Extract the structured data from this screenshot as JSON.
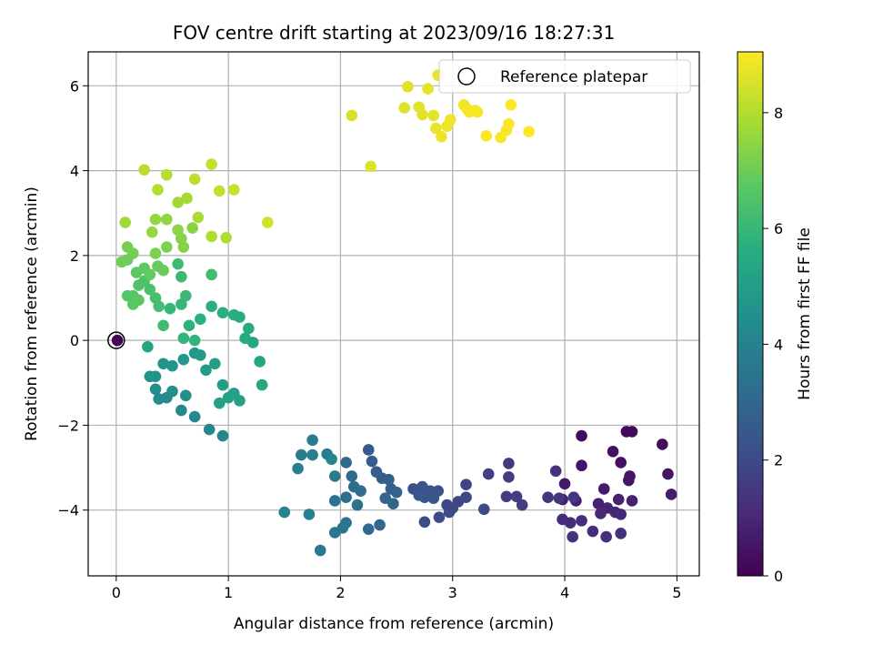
{
  "chart_data": {
    "type": "scatter",
    "title": "FOV centre drift starting at 2023/09/16 18:27:31",
    "xlabel": "Angular distance from reference (arcmin)",
    "ylabel": "Rotation from reference (arcmin)",
    "colorbar_label": "Hours from first FF file",
    "xlim": [
      -0.25,
      5.2
    ],
    "ylim": [
      -5.55,
      6.8
    ],
    "xticks": [
      0,
      1,
      2,
      3,
      4,
      5
    ],
    "yticks": [
      -4,
      -2,
      0,
      2,
      4,
      6
    ],
    "colorbar_ticks": [
      0,
      2,
      4,
      6,
      8
    ],
    "colorbar_range": [
      0,
      9.05
    ],
    "colormap": "viridis",
    "grid": true,
    "legend": {
      "label": "Reference platepar",
      "placement": "top-right"
    },
    "reference_point": {
      "x": 0,
      "y": 0
    },
    "points": [
      {
        "x": 0.01,
        "y": 0.0,
        "t": 0.0
      },
      {
        "x": 4.55,
        "y": -2.15,
        "t": 0.2
      },
      {
        "x": 4.6,
        "y": -2.15,
        "t": 0.2
      },
      {
        "x": 4.15,
        "y": -2.25,
        "t": 0.25
      },
      {
        "x": 4.87,
        "y": -2.45,
        "t": 0.3
      },
      {
        "x": 4.43,
        "y": -2.62,
        "t": 0.35
      },
      {
        "x": 4.5,
        "y": -2.88,
        "t": 0.4
      },
      {
        "x": 4.15,
        "y": -2.95,
        "t": 0.45
      },
      {
        "x": 4.58,
        "y": -3.2,
        "t": 0.5
      },
      {
        "x": 4.92,
        "y": -3.15,
        "t": 0.5
      },
      {
        "x": 4.57,
        "y": -3.3,
        "t": 0.55
      },
      {
        "x": 4.0,
        "y": -3.38,
        "t": 0.6
      },
      {
        "x": 4.35,
        "y": -3.5,
        "t": 0.65
      },
      {
        "x": 4.95,
        "y": -3.63,
        "t": 0.7
      },
      {
        "x": 3.98,
        "y": -3.75,
        "t": 0.75
      },
      {
        "x": 4.1,
        "y": -3.78,
        "t": 0.8
      },
      {
        "x": 4.3,
        "y": -3.85,
        "t": 0.8
      },
      {
        "x": 4.48,
        "y": -3.75,
        "t": 0.85
      },
      {
        "x": 4.6,
        "y": -3.78,
        "t": 0.85
      },
      {
        "x": 4.38,
        "y": -3.95,
        "t": 0.9
      },
      {
        "x": 4.45,
        "y": -4.05,
        "t": 0.95
      },
      {
        "x": 4.32,
        "y": -4.08,
        "t": 1.0
      },
      {
        "x": 4.5,
        "y": -4.1,
        "t": 1.0
      },
      {
        "x": 3.98,
        "y": -4.22,
        "t": 1.05
      },
      {
        "x": 4.05,
        "y": -4.3,
        "t": 1.1
      },
      {
        "x": 4.15,
        "y": -4.25,
        "t": 1.1
      },
      {
        "x": 4.25,
        "y": -4.5,
        "t": 1.15
      },
      {
        "x": 4.5,
        "y": -4.55,
        "t": 1.2
      },
      {
        "x": 4.37,
        "y": -4.63,
        "t": 1.2
      },
      {
        "x": 4.07,
        "y": -4.63,
        "t": 1.25
      },
      {
        "x": 3.92,
        "y": -3.08,
        "t": 1.3
      },
      {
        "x": 3.85,
        "y": -3.7,
        "t": 1.35
      },
      {
        "x": 3.95,
        "y": -3.72,
        "t": 1.4
      },
      {
        "x": 4.08,
        "y": -3.7,
        "t": 1.45
      },
      {
        "x": 3.5,
        "y": -2.9,
        "t": 1.5
      },
      {
        "x": 3.5,
        "y": -3.22,
        "t": 1.55
      },
      {
        "x": 3.48,
        "y": -3.68,
        "t": 1.6
      },
      {
        "x": 3.57,
        "y": -3.68,
        "t": 1.65
      },
      {
        "x": 3.62,
        "y": -3.88,
        "t": 1.7
      },
      {
        "x": 3.32,
        "y": -3.15,
        "t": 1.75
      },
      {
        "x": 3.12,
        "y": -3.4,
        "t": 1.8
      },
      {
        "x": 3.12,
        "y": -3.7,
        "t": 1.85
      },
      {
        "x": 3.05,
        "y": -3.8,
        "t": 1.9
      },
      {
        "x": 2.95,
        "y": -3.88,
        "t": 1.95
      },
      {
        "x": 3.0,
        "y": -3.95,
        "t": 2.0
      },
      {
        "x": 3.28,
        "y": -3.98,
        "t": 2.0
      },
      {
        "x": 2.97,
        "y": -4.05,
        "t": 2.05
      },
      {
        "x": 2.88,
        "y": -4.17,
        "t": 2.1
      },
      {
        "x": 2.75,
        "y": -4.28,
        "t": 2.15
      },
      {
        "x": 2.65,
        "y": -3.5,
        "t": 2.2
      },
      {
        "x": 2.73,
        "y": -3.45,
        "t": 2.25
      },
      {
        "x": 2.8,
        "y": -3.55,
        "t": 2.3
      },
      {
        "x": 2.87,
        "y": -3.55,
        "t": 2.35
      },
      {
        "x": 2.75,
        "y": -3.7,
        "t": 2.4
      },
      {
        "x": 2.83,
        "y": -3.72,
        "t": 2.45
      },
      {
        "x": 2.7,
        "y": -3.65,
        "t": 2.5
      },
      {
        "x": 2.25,
        "y": -2.58,
        "t": 2.55
      },
      {
        "x": 2.28,
        "y": -2.85,
        "t": 2.6
      },
      {
        "x": 2.32,
        "y": -3.1,
        "t": 2.65
      },
      {
        "x": 2.37,
        "y": -3.25,
        "t": 2.7
      },
      {
        "x": 2.43,
        "y": -3.28,
        "t": 2.75
      },
      {
        "x": 2.45,
        "y": -3.5,
        "t": 2.8
      },
      {
        "x": 2.5,
        "y": -3.58,
        "t": 2.85
      },
      {
        "x": 2.4,
        "y": -3.72,
        "t": 2.9
      },
      {
        "x": 2.47,
        "y": -3.85,
        "t": 2.95
      },
      {
        "x": 2.35,
        "y": -4.35,
        "t": 3.0
      },
      {
        "x": 2.25,
        "y": -4.45,
        "t": 3.05
      },
      {
        "x": 2.05,
        "y": -2.88,
        "t": 3.1
      },
      {
        "x": 2.1,
        "y": -3.2,
        "t": 3.15
      },
      {
        "x": 2.12,
        "y": -3.45,
        "t": 3.2
      },
      {
        "x": 2.18,
        "y": -3.55,
        "t": 3.25
      },
      {
        "x": 2.05,
        "y": -3.7,
        "t": 3.3
      },
      {
        "x": 2.15,
        "y": -3.88,
        "t": 3.35
      },
      {
        "x": 1.95,
        "y": -3.78,
        "t": 3.4
      },
      {
        "x": 2.05,
        "y": -4.3,
        "t": 3.45
      },
      {
        "x": 2.02,
        "y": -4.42,
        "t": 3.5
      },
      {
        "x": 1.95,
        "y": -4.53,
        "t": 3.55
      },
      {
        "x": 1.82,
        "y": -4.95,
        "t": 3.6
      },
      {
        "x": 1.95,
        "y": -3.2,
        "t": 3.65
      },
      {
        "x": 1.88,
        "y": -2.68,
        "t": 3.7
      },
      {
        "x": 1.75,
        "y": -2.35,
        "t": 3.75
      },
      {
        "x": 1.65,
        "y": -2.7,
        "t": 3.8
      },
      {
        "x": 1.75,
        "y": -2.7,
        "t": 3.85
      },
      {
        "x": 1.62,
        "y": -3.02,
        "t": 3.9
      },
      {
        "x": 1.72,
        "y": -4.1,
        "t": 3.95
      },
      {
        "x": 1.5,
        "y": -4.05,
        "t": 4.0
      },
      {
        "x": 1.92,
        "y": -2.8,
        "t": 4.05
      },
      {
        "x": 0.95,
        "y": -2.25,
        "t": 4.1
      },
      {
        "x": 0.83,
        "y": -2.1,
        "t": 4.15
      },
      {
        "x": 0.7,
        "y": -1.8,
        "t": 4.2
      },
      {
        "x": 0.58,
        "y": -1.65,
        "t": 4.25
      },
      {
        "x": 0.45,
        "y": -1.35,
        "t": 4.3
      },
      {
        "x": 0.38,
        "y": -1.38,
        "t": 4.35
      },
      {
        "x": 0.35,
        "y": -1.15,
        "t": 4.4
      },
      {
        "x": 0.5,
        "y": -1.2,
        "t": 4.45
      },
      {
        "x": 0.62,
        "y": -1.3,
        "t": 4.5
      },
      {
        "x": 0.35,
        "y": -0.85,
        "t": 4.55
      },
      {
        "x": 0.3,
        "y": -0.85,
        "t": 4.6
      },
      {
        "x": 0.42,
        "y": -0.55,
        "t": 4.65
      },
      {
        "x": 0.5,
        "y": -0.6,
        "t": 4.7
      },
      {
        "x": 0.6,
        "y": -0.45,
        "t": 4.75
      },
      {
        "x": 0.7,
        "y": -0.3,
        "t": 4.8
      },
      {
        "x": 0.75,
        "y": -0.35,
        "t": 4.85
      },
      {
        "x": 0.8,
        "y": -0.7,
        "t": 4.9
      },
      {
        "x": 0.88,
        "y": -0.55,
        "t": 4.95
      },
      {
        "x": 0.95,
        "y": -1.05,
        "t": 5.0
      },
      {
        "x": 1.05,
        "y": -1.25,
        "t": 5.05
      },
      {
        "x": 1.1,
        "y": -1.42,
        "t": 5.1
      },
      {
        "x": 1.0,
        "y": -1.35,
        "t": 5.15
      },
      {
        "x": 0.92,
        "y": -1.48,
        "t": 5.2
      },
      {
        "x": 0.28,
        "y": -0.15,
        "t": 5.25
      },
      {
        "x": 1.28,
        "y": -0.5,
        "t": 5.3
      },
      {
        "x": 1.3,
        "y": -1.05,
        "t": 5.35
      },
      {
        "x": 1.22,
        "y": -0.05,
        "t": 5.4
      },
      {
        "x": 1.15,
        "y": 0.05,
        "t": 5.45
      },
      {
        "x": 1.18,
        "y": 0.28,
        "t": 5.5
      },
      {
        "x": 1.1,
        "y": 0.55,
        "t": 5.55
      },
      {
        "x": 1.05,
        "y": 0.6,
        "t": 5.6
      },
      {
        "x": 0.95,
        "y": 0.65,
        "t": 5.65
      },
      {
        "x": 0.85,
        "y": 0.8,
        "t": 5.7
      },
      {
        "x": 0.75,
        "y": 0.5,
        "t": 5.75
      },
      {
        "x": 0.65,
        "y": 0.35,
        "t": 5.8
      },
      {
        "x": 0.7,
        "y": 0.0,
        "t": 5.85
      },
      {
        "x": 0.6,
        "y": 0.05,
        "t": 5.9
      },
      {
        "x": 0.48,
        "y": 0.75,
        "t": 5.95
      },
      {
        "x": 0.58,
        "y": 0.85,
        "t": 6.0
      },
      {
        "x": 0.62,
        "y": 1.05,
        "t": 6.05
      },
      {
        "x": 0.58,
        "y": 1.5,
        "t": 6.1
      },
      {
        "x": 0.55,
        "y": 1.8,
        "t": 6.15
      },
      {
        "x": 0.42,
        "y": 0.35,
        "t": 6.2
      },
      {
        "x": 0.85,
        "y": 1.55,
        "t": 6.25
      },
      {
        "x": 0.38,
        "y": 0.8,
        "t": 6.3
      },
      {
        "x": 0.35,
        "y": 1.0,
        "t": 6.35
      },
      {
        "x": 0.3,
        "y": 1.2,
        "t": 6.4
      },
      {
        "x": 0.25,
        "y": 1.4,
        "t": 6.45
      },
      {
        "x": 0.2,
        "y": 1.3,
        "t": 6.5
      },
      {
        "x": 0.15,
        "y": 1.05,
        "t": 6.55
      },
      {
        "x": 0.1,
        "y": 1.05,
        "t": 6.6
      },
      {
        "x": 0.15,
        "y": 0.85,
        "t": 6.65
      },
      {
        "x": 0.2,
        "y": 0.95,
        "t": 6.7
      },
      {
        "x": 0.18,
        "y": 1.6,
        "t": 6.75
      },
      {
        "x": 0.25,
        "y": 1.7,
        "t": 6.8
      },
      {
        "x": 0.3,
        "y": 1.55,
        "t": 6.85
      },
      {
        "x": 0.37,
        "y": 1.75,
        "t": 6.9
      },
      {
        "x": 0.42,
        "y": 1.65,
        "t": 6.95
      },
      {
        "x": 0.1,
        "y": 1.9,
        "t": 7.0
      },
      {
        "x": 0.05,
        "y": 1.85,
        "t": 7.05
      },
      {
        "x": 0.15,
        "y": 2.05,
        "t": 7.1
      },
      {
        "x": 0.1,
        "y": 2.2,
        "t": 7.15
      },
      {
        "x": 0.35,
        "y": 2.05,
        "t": 7.2
      },
      {
        "x": 0.45,
        "y": 2.2,
        "t": 7.25
      },
      {
        "x": 0.58,
        "y": 2.4,
        "t": 7.3
      },
      {
        "x": 0.6,
        "y": 2.2,
        "t": 7.35
      },
      {
        "x": 0.68,
        "y": 2.65,
        "t": 7.4
      },
      {
        "x": 0.55,
        "y": 2.6,
        "t": 7.45
      },
      {
        "x": 0.45,
        "y": 2.85,
        "t": 7.5
      },
      {
        "x": 0.35,
        "y": 2.85,
        "t": 7.55
      },
      {
        "x": 0.32,
        "y": 2.55,
        "t": 7.6
      },
      {
        "x": 0.08,
        "y": 2.78,
        "t": 7.7
      },
      {
        "x": 0.55,
        "y": 3.25,
        "t": 7.75
      },
      {
        "x": 0.63,
        "y": 3.35,
        "t": 7.8
      },
      {
        "x": 0.73,
        "y": 2.9,
        "t": 7.85
      },
      {
        "x": 0.85,
        "y": 2.45,
        "t": 7.9
      },
      {
        "x": 0.98,
        "y": 2.42,
        "t": 7.95
      },
      {
        "x": 0.37,
        "y": 3.55,
        "t": 8.0
      },
      {
        "x": 0.45,
        "y": 3.9,
        "t": 8.05
      },
      {
        "x": 0.25,
        "y": 4.02,
        "t": 8.1
      },
      {
        "x": 0.7,
        "y": 3.8,
        "t": 8.15
      },
      {
        "x": 0.85,
        "y": 4.15,
        "t": 8.2
      },
      {
        "x": 0.92,
        "y": 3.52,
        "t": 8.25
      },
      {
        "x": 1.05,
        "y": 3.55,
        "t": 8.3
      },
      {
        "x": 1.35,
        "y": 2.78,
        "t": 8.4
      },
      {
        "x": 2.1,
        "y": 5.3,
        "t": 8.5
      },
      {
        "x": 2.27,
        "y": 4.1,
        "t": 8.55
      },
      {
        "x": 2.6,
        "y": 5.98,
        "t": 8.6
      },
      {
        "x": 2.57,
        "y": 5.48,
        "t": 8.62
      },
      {
        "x": 2.7,
        "y": 5.5,
        "t": 8.65
      },
      {
        "x": 2.73,
        "y": 5.32,
        "t": 8.67
      },
      {
        "x": 2.78,
        "y": 5.93,
        "t": 8.7
      },
      {
        "x": 2.83,
        "y": 5.3,
        "t": 8.72
      },
      {
        "x": 2.85,
        "y": 5.0,
        "t": 8.75
      },
      {
        "x": 2.87,
        "y": 6.25,
        "t": 8.77
      },
      {
        "x": 2.9,
        "y": 4.8,
        "t": 8.8
      },
      {
        "x": 2.95,
        "y": 5.05,
        "t": 8.82
      },
      {
        "x": 2.98,
        "y": 5.2,
        "t": 8.85
      },
      {
        "x": 3.1,
        "y": 5.55,
        "t": 8.87
      },
      {
        "x": 3.13,
        "y": 5.45,
        "t": 8.9
      },
      {
        "x": 3.15,
        "y": 5.38,
        "t": 8.92
      },
      {
        "x": 3.2,
        "y": 5.42,
        "t": 8.95
      },
      {
        "x": 3.22,
        "y": 5.38,
        "t": 8.97
      },
      {
        "x": 3.3,
        "y": 4.82,
        "t": 9.0
      },
      {
        "x": 3.43,
        "y": 4.78,
        "t": 9.0
      },
      {
        "x": 3.48,
        "y": 4.95,
        "t": 9.0
      },
      {
        "x": 3.5,
        "y": 5.1,
        "t": 9.02
      },
      {
        "x": 3.52,
        "y": 5.55,
        "t": 9.03
      },
      {
        "x": 3.68,
        "y": 4.92,
        "t": 9.05
      }
    ]
  }
}
